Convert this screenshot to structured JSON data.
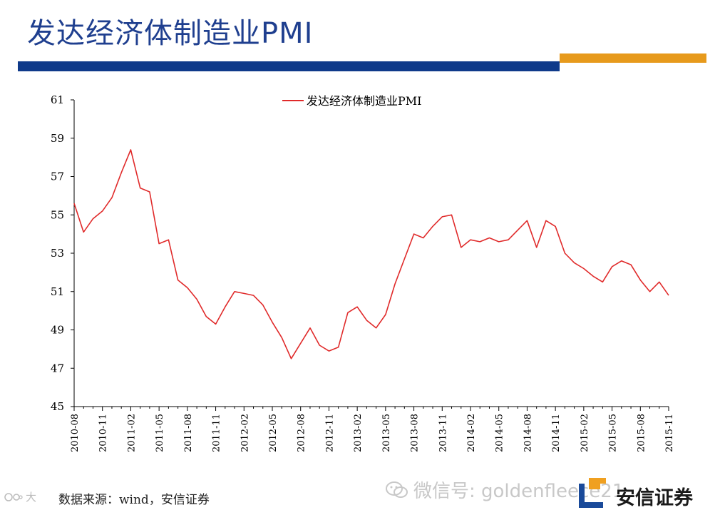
{
  "slide": {
    "title": "发达经济体制造业PMI",
    "source": "数据来源：wind，安信证券",
    "watermark": "微信号: goldenfleece21",
    "corner_watermark": "大",
    "logo_text": "安信证券",
    "colors": {
      "title": "#1f3f8f",
      "bar_blue": "#0f3a8a",
      "bar_orange": "#e79a1c",
      "line": "#e02a2a",
      "logo_orange": "#f0a020",
      "logo_blue": "#1a4a9a"
    }
  },
  "chart_data": {
    "type": "line",
    "title": "",
    "xlabel": "",
    "ylabel": "",
    "ylim": [
      45,
      61
    ],
    "yticks": [
      45,
      47,
      49,
      51,
      53,
      55,
      57,
      59,
      61
    ],
    "x_tick_labels": [
      "2010-08",
      "2010-11",
      "2011-02",
      "2011-05",
      "2011-08",
      "2011-11",
      "2012-02",
      "2012-05",
      "2012-08",
      "2012-11",
      "2013-02",
      "2013-05",
      "2013-08",
      "2013-11",
      "2014-02",
      "2014-05",
      "2014-08",
      "2014-11",
      "2015-02",
      "2015-05",
      "2015-08",
      "2015-11"
    ],
    "legend": {
      "placement": "top-center"
    },
    "grid": false,
    "series": [
      {
        "name": "发达经济体制造业PMI",
        "color": "#e02a2a",
        "x": [
          "2010-08",
          "2010-09",
          "2010-10",
          "2010-11",
          "2010-12",
          "2011-01",
          "2011-02",
          "2011-03",
          "2011-04",
          "2011-05",
          "2011-06",
          "2011-07",
          "2011-08",
          "2011-09",
          "2011-10",
          "2011-11",
          "2011-12",
          "2012-01",
          "2012-02",
          "2012-03",
          "2012-04",
          "2012-05",
          "2012-06",
          "2012-07",
          "2012-08",
          "2012-09",
          "2012-10",
          "2012-11",
          "2012-12",
          "2013-01",
          "2013-02",
          "2013-03",
          "2013-04",
          "2013-05",
          "2013-06",
          "2013-07",
          "2013-08",
          "2013-09",
          "2013-10",
          "2013-11",
          "2013-12",
          "2014-01",
          "2014-02",
          "2014-03",
          "2014-04",
          "2014-05",
          "2014-06",
          "2014-07",
          "2014-08",
          "2014-09",
          "2014-10",
          "2014-11",
          "2014-12",
          "2015-01",
          "2015-02",
          "2015-03",
          "2015-04",
          "2015-05",
          "2015-06",
          "2015-07",
          "2015-08",
          "2015-09",
          "2015-10",
          "2015-11"
        ],
        "values": [
          55.6,
          54.1,
          54.8,
          55.2,
          55.9,
          57.2,
          58.4,
          56.4,
          56.2,
          53.5,
          53.7,
          51.6,
          51.2,
          50.6,
          49.7,
          49.3,
          50.2,
          51.0,
          50.9,
          50.8,
          50.3,
          49.4,
          48.6,
          47.5,
          48.3,
          49.1,
          48.2,
          47.9,
          48.1,
          49.9,
          50.2,
          49.5,
          49.1,
          49.8,
          51.4,
          52.7,
          54.0,
          53.8,
          54.4,
          54.9,
          55.0,
          53.3,
          53.7,
          53.6,
          53.8,
          53.6,
          53.7,
          54.2,
          54.7,
          53.3,
          54.7,
          54.4,
          53.0,
          52.5,
          52.2,
          51.8,
          51.5,
          52.3,
          52.6,
          52.4,
          51.6,
          51.0,
          51.5,
          50.8
        ]
      }
    ]
  }
}
